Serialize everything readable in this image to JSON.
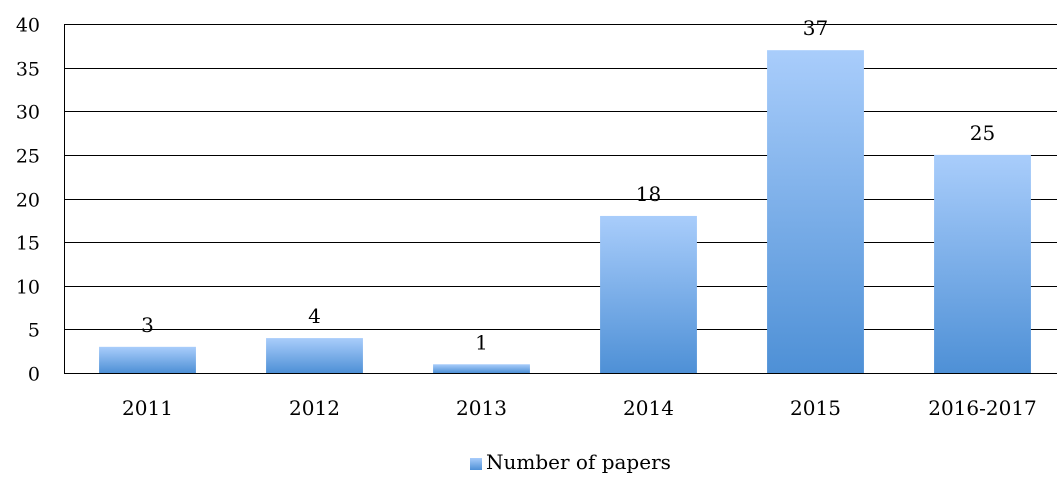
{
  "chart_data": {
    "type": "bar",
    "categories": [
      "2011",
      "2012",
      "2013",
      "2014",
      "2015",
      "2016-2017"
    ],
    "series": [
      {
        "name": "Number of papers",
        "values": [
          3,
          4,
          1,
          18,
          37,
          25
        ]
      }
    ],
    "data_labels": [
      "3",
      "4",
      "1",
      "18",
      "37",
      "25"
    ],
    "ylim": [
      0,
      40
    ],
    "yticks": [
      0,
      5,
      10,
      15,
      20,
      25,
      30,
      35,
      40
    ],
    "title": "",
    "xlabel": "",
    "ylabel": "",
    "grid": true,
    "legend_position": "bottom",
    "colors": {
      "bar_top": "#A9CDFB",
      "bar_bottom": "#4E90D6",
      "grid": "#000000",
      "axis": "#000000"
    }
  }
}
